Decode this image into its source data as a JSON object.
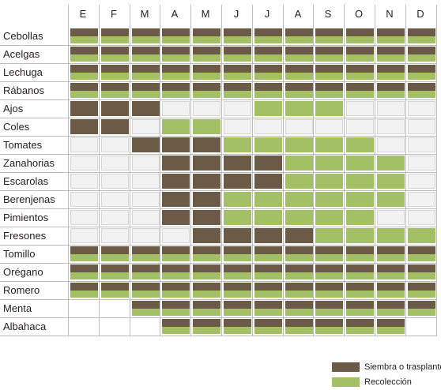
{
  "chart_data": {
    "type": "table",
    "months": [
      "E",
      "F",
      "M",
      "A",
      "M",
      "J",
      "J",
      "A",
      "S",
      "O",
      "N",
      "D"
    ],
    "crops": [
      {
        "name": "Cebollas",
        "cells": [
          "b",
          "b",
          "b",
          "b",
          "b",
          "b",
          "b",
          "b",
          "b",
          "b",
          "b",
          "b"
        ]
      },
      {
        "name": "Acelgas",
        "cells": [
          "b",
          "b",
          "b",
          "b",
          "b",
          "b",
          "b",
          "b",
          "b",
          "b",
          "b",
          "b"
        ]
      },
      {
        "name": "Lechuga",
        "cells": [
          "b",
          "b",
          "b",
          "b",
          "b",
          "b",
          "b",
          "b",
          "b",
          "b",
          "b",
          "b"
        ]
      },
      {
        "name": "Rábanos",
        "cells": [
          "b",
          "b",
          "b",
          "b",
          "b",
          "b",
          "b",
          "b",
          "b",
          "b",
          "b",
          "b"
        ]
      },
      {
        "name": "Ajos",
        "cells": [
          "s",
          "s",
          "s",
          "e",
          "e",
          "e",
          "r",
          "r",
          "r",
          "e",
          "e",
          "e"
        ]
      },
      {
        "name": "Coles",
        "cells": [
          "s",
          "s",
          "e",
          "r",
          "r",
          "e",
          "e",
          "e",
          "e",
          "e",
          "e",
          "e"
        ]
      },
      {
        "name": "Tomates",
        "cells": [
          "e",
          "e",
          "s",
          "s",
          "s",
          "r",
          "r",
          "r",
          "r",
          "r",
          "e",
          "e"
        ]
      },
      {
        "name": "Zanahorias",
        "cells": [
          "e",
          "e",
          "e",
          "s",
          "s",
          "s",
          "s",
          "r",
          "r",
          "r",
          "r",
          "e"
        ]
      },
      {
        "name": "Escarolas",
        "cells": [
          "e",
          "e",
          "e",
          "s",
          "s",
          "s",
          "s",
          "r",
          "r",
          "r",
          "r",
          "e"
        ]
      },
      {
        "name": "Berenjenas",
        "cells": [
          "e",
          "e",
          "e",
          "s",
          "s",
          "r",
          "r",
          "r",
          "r",
          "r",
          "r",
          "e"
        ]
      },
      {
        "name": "Pimientos",
        "cells": [
          "e",
          "e",
          "e",
          "s",
          "s",
          "r",
          "r",
          "r",
          "r",
          "r",
          "e",
          "e"
        ]
      },
      {
        "name": "Fresones",
        "cells": [
          "e",
          "e",
          "e",
          "e",
          "s",
          "s",
          "s",
          "s",
          "r",
          "r",
          "r",
          "r"
        ]
      },
      {
        "name": "Tomillo",
        "cells": [
          "b",
          "b",
          "b",
          "b",
          "b",
          "b",
          "b",
          "b",
          "b",
          "b",
          "b",
          "b"
        ]
      },
      {
        "name": "Orégano",
        "cells": [
          "b",
          "b",
          "b",
          "b",
          "b",
          "b",
          "b",
          "b",
          "b",
          "b",
          "b",
          "b"
        ]
      },
      {
        "name": "Romero",
        "cells": [
          "b",
          "b",
          "b",
          "b",
          "b",
          "b",
          "b",
          "b",
          "b",
          "b",
          "b",
          "b"
        ]
      },
      {
        "name": "Menta",
        "cells": [
          "w",
          "w",
          "b",
          "b",
          "b",
          "b",
          "b",
          "b",
          "b",
          "b",
          "b",
          "b"
        ]
      },
      {
        "name": "Albahaca",
        "cells": [
          "w",
          "w",
          "w",
          "b",
          "b",
          "b",
          "b",
          "b",
          "b",
          "b",
          "b",
          "w"
        ]
      }
    ],
    "legend": [
      {
        "key": "s",
        "label": "Siembra o trasplante",
        "color": "#6b5a45"
      },
      {
        "key": "r",
        "label": "Recolección",
        "color": "#a3c164"
      }
    ],
    "colors": {
      "empty": "#f2f2f2",
      "border": "#d6d6d6"
    }
  }
}
